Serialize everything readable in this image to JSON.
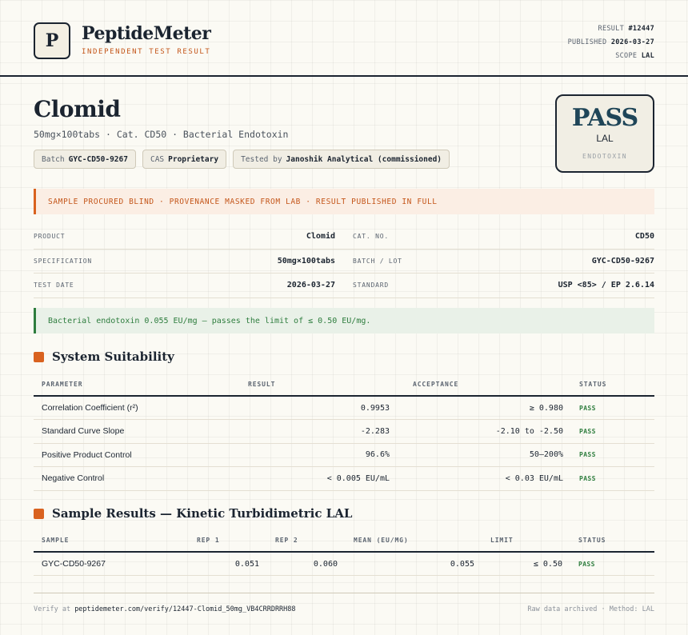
{
  "header": {
    "logo_letter": "P",
    "brand": "PeptideMeter",
    "tagline": "INDEPENDENT TEST RESULT",
    "result_label": "RESULT",
    "result_value": "#12447",
    "published_label": "PUBLISHED",
    "published_value": "2026-03-27",
    "scope_label": "SCOPE",
    "scope_value": "LAL"
  },
  "product": {
    "title": "Clomid",
    "subtitle": "50mg×100tabs · Cat. CD50 · Bacterial Endotoxin",
    "chips": {
      "batch_label": "Batch",
      "batch_value": "GYC-CD50-9267",
      "cas_label": "CAS",
      "cas_value": "Proprietary",
      "tested_label": "Tested by",
      "tested_value": "Janoshik Analytical (commissioned)"
    }
  },
  "verdict": {
    "word": "PASS",
    "method": "LAL",
    "test": "ENDOTOXIN"
  },
  "notice": "SAMPLE PROCURED BLIND · PROVENANCE MASKED FROM LAB · RESULT PUBLISHED IN FULL",
  "info": {
    "product_label": "PRODUCT",
    "product_value": "Clomid",
    "catno_label": "CAT. NO.",
    "catno_value": "CD50",
    "spec_label": "SPECIFICATION",
    "spec_value": "50mg×100tabs",
    "batch_label": "BATCH / LOT",
    "batch_value": "GYC-CD50-9267",
    "date_label": "TEST DATE",
    "date_value": "2026-03-27",
    "standard_label": "STANDARD",
    "standard_value": "USP <85> / EP 2.6.14"
  },
  "summary": "Bacterial endotoxin 0.055 EU/mg — passes the limit of ≤ 0.50 EU/mg.",
  "suitability": {
    "title": "System Suitability",
    "headers": {
      "parameter": "PARAMETER",
      "result": "RESULT",
      "acceptance": "ACCEPTANCE",
      "status": "STATUS"
    },
    "rows": [
      {
        "parameter": "Correlation Coefficient (r²)",
        "result": "0.9953",
        "acceptance": "≥ 0.980",
        "status": "PASS"
      },
      {
        "parameter": "Standard Curve Slope",
        "result": "-2.283",
        "acceptance": "-2.10 to -2.50",
        "status": "PASS"
      },
      {
        "parameter": "Positive Product Control",
        "result": "96.6%",
        "acceptance": "50–200%",
        "status": "PASS"
      },
      {
        "parameter": "Negative Control",
        "result": "< 0.005 EU/mL",
        "acceptance": "< 0.03 EU/mL",
        "status": "PASS"
      }
    ]
  },
  "samples": {
    "title": "Sample Results — Kinetic Turbidimetric LAL",
    "headers": {
      "sample": "SAMPLE",
      "rep1": "REP 1",
      "rep2": "REP 2",
      "mean": "MEAN (EU/MG)",
      "limit": "LIMIT",
      "status": "STATUS"
    },
    "rows": [
      {
        "sample": "GYC-CD50-9267",
        "rep1": "0.051",
        "rep2": "0.060",
        "mean": "0.055",
        "limit": "≤ 0.50",
        "status": "PASS"
      }
    ]
  },
  "footer": {
    "verify_label": "Verify at",
    "verify_url": "peptidemeter.com/verify/12447-Clomid_50mg_VB4CRRDRRH88",
    "archive": "Raw data archived · Method: LAL"
  }
}
